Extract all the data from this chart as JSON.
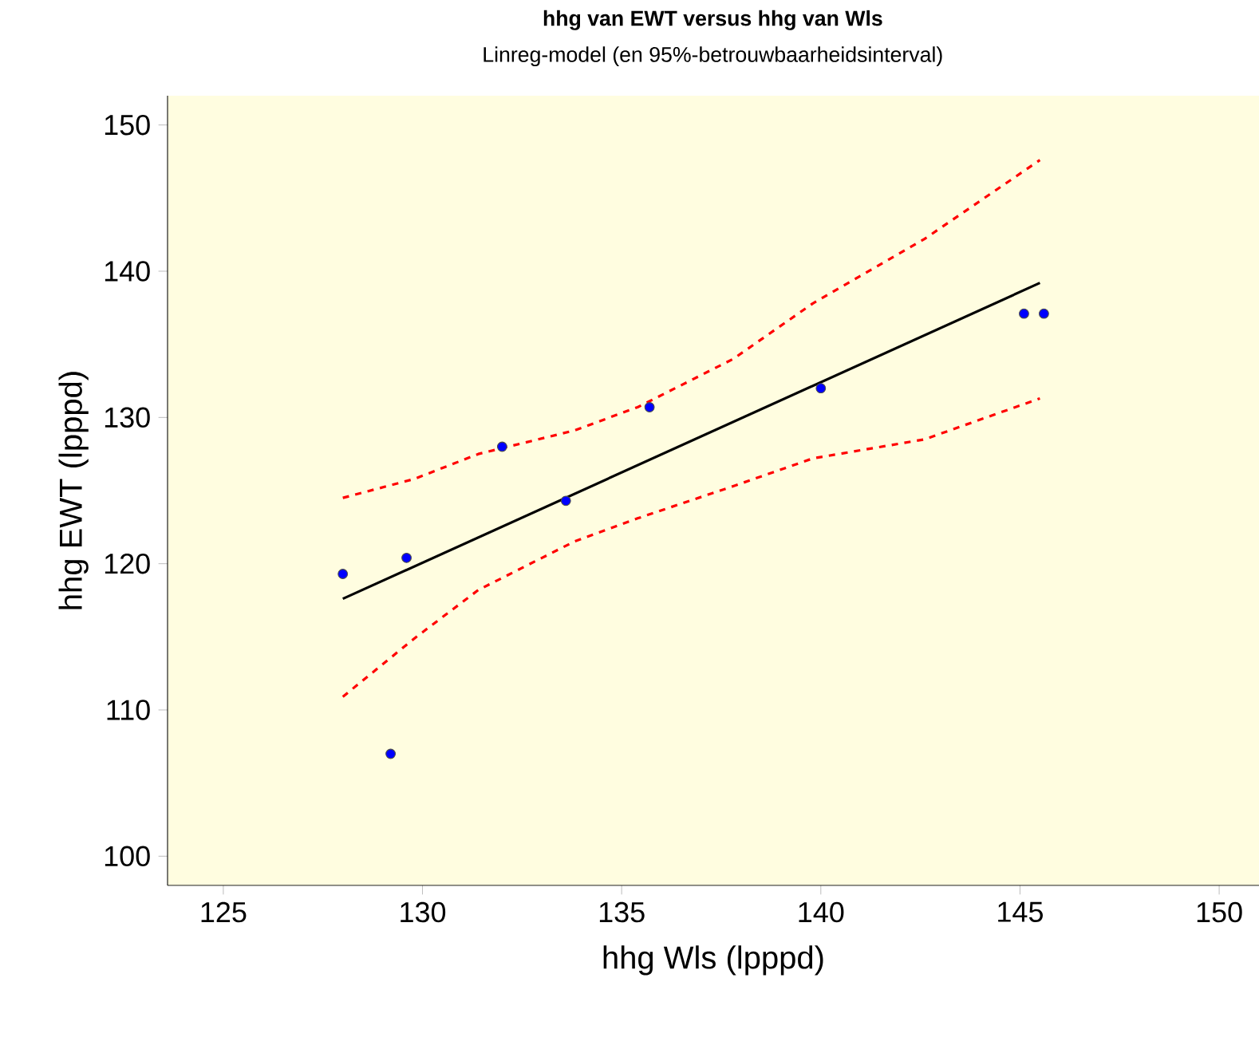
{
  "chart_data": {
    "type": "scatter",
    "title": "hhg van EWT versus hhg van Wls",
    "subtitle": "Linreg-model (en 95%-betrouwbaarheidsinterval)",
    "xlabel": "hhg Wls (lpppd)",
    "ylabel": "hhg EWT (lpppd)",
    "xlim": [
      123.6,
      151
    ],
    "ylim": [
      98,
      152
    ],
    "xticks": [
      125,
      130,
      135,
      140,
      145,
      150
    ],
    "yticks": [
      100,
      110,
      120,
      130,
      140,
      150
    ],
    "series": [
      {
        "type": "line",
        "color": "#ff0000",
        "line_style": "dashed",
        "x": [
          128.0,
          129.8,
          131.4,
          133.8,
          135.4,
          137.8,
          139.8,
          142.6,
          145.5
        ],
        "values": [
          124.5,
          125.8,
          127.5,
          129.1,
          130.7,
          134.0,
          137.8,
          142.2,
          147.6
        ]
      },
      {
        "type": "line",
        "color": "#ff0000",
        "line_style": "dashed",
        "x": [
          128.0,
          129.8,
          131.4,
          133.8,
          135.4,
          137.8,
          139.8,
          142.6,
          145.5
        ],
        "values": [
          110.9,
          114.9,
          118.2,
          121.5,
          123.1,
          125.3,
          127.2,
          128.5,
          131.3
        ]
      },
      {
        "type": "line",
        "color": "#000000",
        "line_style": "solid",
        "x": [
          128.0,
          145.5
        ],
        "values": [
          117.6,
          139.2
        ]
      },
      {
        "type": "scatter",
        "marker": "circle",
        "color": "#0000ff",
        "x": [
          128.0,
          129.2,
          129.6,
          132.0,
          133.6,
          135.7,
          140.0,
          145.1,
          145.6
        ],
        "values": [
          119.3,
          107.0,
          120.4,
          128.0,
          124.3,
          130.7,
          132.0,
          137.1,
          137.1
        ]
      }
    ]
  }
}
